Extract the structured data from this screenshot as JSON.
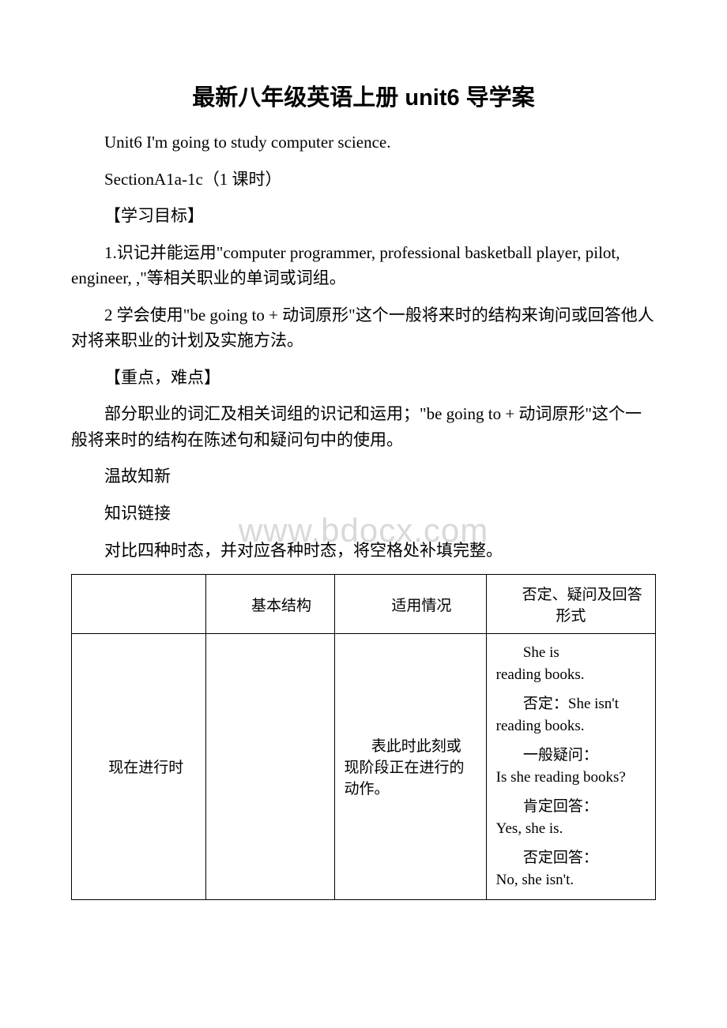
{
  "watermark": "www.bdocx.com",
  "title": "最新八年级英语上册 unit6 导学案",
  "paragraphs": {
    "p1": "Unit6 I'm going to study computer science.",
    "p2": "SectionA1a-1c（1 课时）",
    "p3": "【学习目标】",
    "p4a": "1.识记并能运用\"",
    "p4b": "computer programmer, professional basketball player, pilot, engineer, ,",
    "p4c": "\"等相关职业的单词或词组。",
    "p5a": "2 学会使用\"",
    "p5b": "be going to + ",
    "p5c": "动词原形\"这个一般将来时的结构来询问或回答他人对将来职业的计划及实施方法。",
    "p6": "【重点，难点】",
    "p7a": "部分职业的词汇及相关词组的识记和运用；\"",
    "p7b": "be going to + ",
    "p7c": "动词原形\"这个一般将来时的结构在陈述句和疑问句中的使用。",
    "p8": "温故知新",
    "p9": "知识链接",
    "p10": "对比四种时态，并对应各种时态，将空格处补填完整。"
  },
  "table": {
    "headers": {
      "h0": "",
      "h1": "基本结构",
      "h2": "适用情况",
      "h3": "否定、疑问及回答形式"
    },
    "row1": {
      "c0": "现在进行时",
      "c1": "",
      "c2": "表此时此刻或现阶段正在进行的动作。",
      "c3": {
        "l1a": "She is",
        "l1b": "reading books.",
        "l2a": "否定：",
        "l2b": "She isn't reading books.",
        "l3a": "一般疑问：",
        "l3b": "Is she reading books?",
        "l4a": "肯定回答：",
        "l4b": "Yes, she is.",
        "l5a": "否定回答：",
        "l5b": "No, she isn't."
      }
    }
  },
  "colors": {
    "text": "#000000",
    "background": "#ffffff",
    "watermark": "#d9d9d9",
    "border": "#000000"
  }
}
